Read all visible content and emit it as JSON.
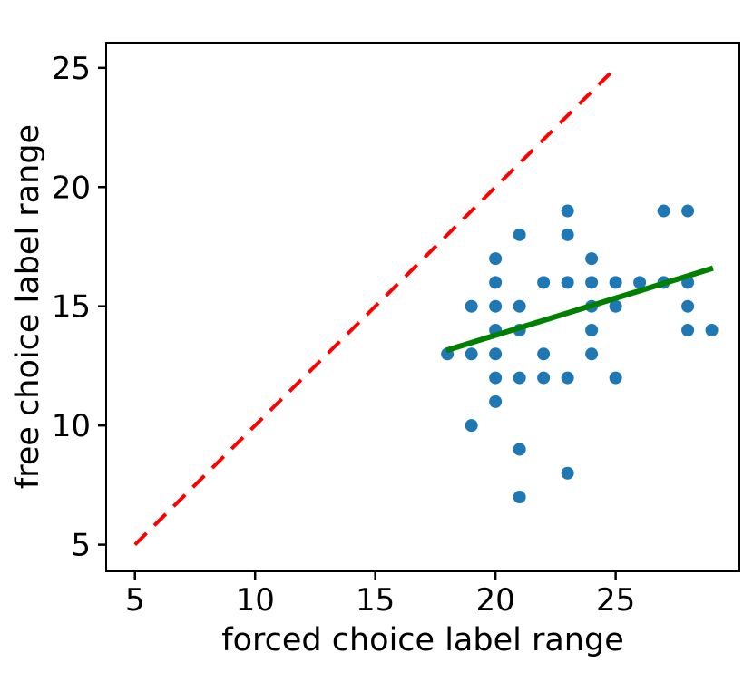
{
  "chart_data": {
    "type": "scatter",
    "title": "",
    "xlabel": "forced choice label range",
    "ylabel": "free choice label range",
    "x_ticks": [
      5,
      10,
      15,
      20,
      25
    ],
    "y_ticks": [
      5,
      10,
      15,
      20,
      25
    ],
    "xlim": [
      3.84,
      30.11
    ],
    "ylim": [
      3.92,
      26.02
    ],
    "grid": false,
    "legend": "none",
    "point_color": "#1f77b4",
    "points": [
      [
        23,
        19
      ],
      [
        27,
        19
      ],
      [
        28,
        19
      ],
      [
        21,
        18
      ],
      [
        23,
        18
      ],
      [
        20,
        17
      ],
      [
        24,
        17
      ],
      [
        20,
        16
      ],
      [
        22,
        16
      ],
      [
        23,
        16
      ],
      [
        24,
        16
      ],
      [
        25,
        16
      ],
      [
        26,
        16
      ],
      [
        27,
        16
      ],
      [
        28,
        16
      ],
      [
        19,
        15
      ],
      [
        20,
        15
      ],
      [
        21,
        15
      ],
      [
        24,
        15
      ],
      [
        25,
        15
      ],
      [
        28,
        15
      ],
      [
        20,
        14
      ],
      [
        21,
        14
      ],
      [
        24,
        14
      ],
      [
        28,
        14
      ],
      [
        29,
        14
      ],
      [
        18,
        13
      ],
      [
        19,
        13
      ],
      [
        20,
        13
      ],
      [
        22,
        13
      ],
      [
        24,
        13
      ],
      [
        20,
        12
      ],
      [
        21,
        12
      ],
      [
        22,
        12
      ],
      [
        23,
        12
      ],
      [
        25,
        12
      ],
      [
        20,
        11
      ],
      [
        19,
        10
      ],
      [
        21,
        9
      ],
      [
        23,
        8
      ],
      [
        21,
        7
      ]
    ],
    "identity_line": {
      "x1": 5,
      "y1": 5,
      "x2": 25,
      "y2": 25,
      "color": "#ff0000",
      "style": "dashed"
    },
    "trend_line": {
      "x1": 17.95,
      "y1": 13.15,
      "x2": 29.05,
      "y2": 16.6,
      "color": "#008000",
      "style": "solid"
    }
  }
}
